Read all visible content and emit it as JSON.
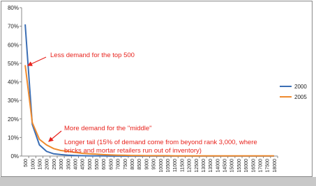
{
  "chart_data": {
    "type": "line",
    "categories": [
      "500",
      "1000",
      "1500",
      "2000",
      "2500",
      "3000",
      "3500",
      "4000",
      "4500",
      "5000",
      "5500",
      "6000",
      "6500",
      "7000",
      "7500",
      "8000",
      "8500",
      "9000",
      "9500",
      "10000",
      "10500",
      "11000",
      "11500",
      "12000",
      "12500",
      "13000",
      "13500",
      "14000",
      "14500",
      "15000",
      "15500",
      "16000",
      "16500",
      "17000",
      "17500",
      "18000"
    ],
    "series": [
      {
        "name": "2000",
        "color": "#3b6eb4",
        "values": [
          71,
          17,
          6,
          2.5,
          1.2,
          0.8,
          0.5,
          0.3,
          0.2,
          0.1,
          0.1,
          0.1,
          0,
          0,
          0,
          0,
          0,
          0,
          0,
          0,
          0,
          0,
          0,
          0,
          0,
          0,
          0,
          0,
          0,
          0,
          0,
          0,
          0,
          0,
          0,
          0
        ]
      },
      {
        "name": "2005",
        "color": "#ee8a2e",
        "values": [
          49,
          18,
          9,
          6,
          4,
          3,
          2.5,
          2,
          1.5,
          1.2,
          1,
          0.8,
          0.6,
          0.5,
          0.4,
          0.3,
          0.3,
          0.2,
          0.2,
          0.2,
          0.2,
          0.1,
          0.1,
          0.1,
          0.1,
          0.1,
          0.1,
          0.1,
          0.1,
          0.1,
          0.1,
          0.1,
          0.1,
          0.1,
          0.1,
          0.1
        ]
      }
    ],
    "ylim": [
      0,
      80
    ],
    "yticks": [
      {
        "value": 0,
        "label": "0%"
      },
      {
        "value": 10,
        "label": "10%"
      },
      {
        "value": 20,
        "label": "20%"
      },
      {
        "value": 30,
        "label": "30%"
      },
      {
        "value": 40,
        "label": "40%"
      },
      {
        "value": 50,
        "label": "50%"
      },
      {
        "value": 60,
        "label": "60%"
      },
      {
        "value": 70,
        "label": "70%"
      },
      {
        "value": 80,
        "label": "80%"
      }
    ],
    "legend": "right",
    "annotations": [
      "Less demand for the top 500",
      "More demand for the \"middle\"",
      "Longer tail (15% of demand come from beyond rank 3,000, where",
      "bricks and mortar retailers run out of inventory)"
    ]
  }
}
